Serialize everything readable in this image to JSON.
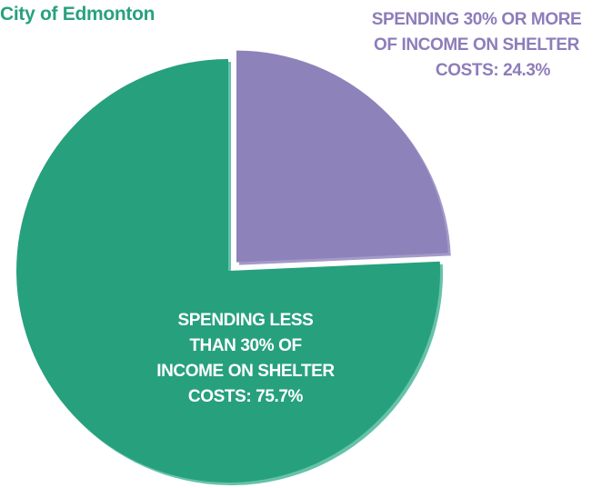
{
  "title": "City of Edmonton",
  "colors": {
    "title": "#28a17e",
    "slice_less": "#27a07e",
    "slice_less_edge": "#66c2a9",
    "slice_more": "#8e82bb",
    "slice_more_edge": "#a49ac9",
    "label_more": "#8e7dba",
    "label_less": "#ffffff"
  },
  "chart_data": {
    "type": "pie",
    "title": "City of Edmonton",
    "slices": [
      {
        "value": 24.3,
        "exploded": true,
        "color": "#8e82bb",
        "label_lines": [
          "SPENDING 30% OR MORE",
          "OF INCOME ON SHELTER",
          "COSTS: 24.3%"
        ]
      },
      {
        "value": 75.7,
        "exploded": false,
        "color": "#27a07e",
        "label_lines": [
          "SPENDING LESS",
          "THAN  30% OF",
          "INCOME ON SHELTER",
          "COSTS: 75.7%"
        ]
      }
    ]
  }
}
